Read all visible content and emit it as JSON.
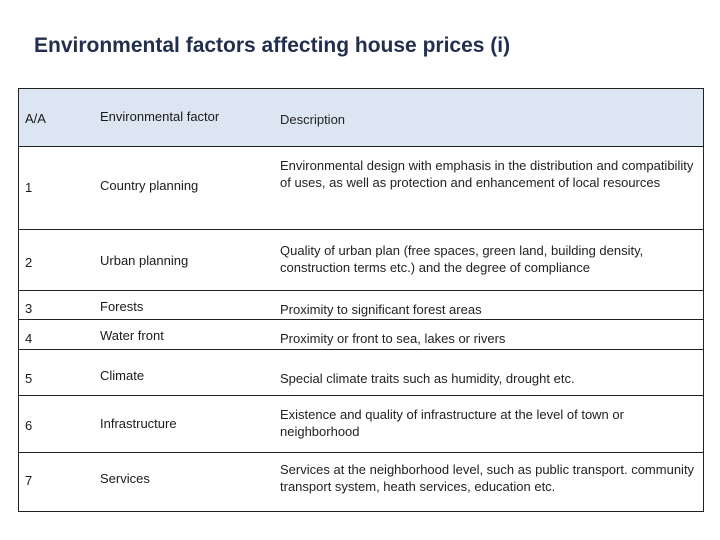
{
  "title": "Environmental factors affecting house prices (i)",
  "table": {
    "headers": [
      "A/A",
      "Environmental factor",
      "Description"
    ],
    "rows": [
      {
        "num": "1",
        "factor": "Country planning",
        "description": "Environmental design with emphasis in the distribution and compatibility of uses, as well as protection and enhancement of local resources"
      },
      {
        "num": "2",
        "factor": "Urban planning",
        "description": "Quality of urban plan (free spaces,  green land, building density, construction terms etc.) and the degree of compliance"
      },
      {
        "num": "3",
        "factor": "Forests",
        "description": "Proximity to significant forest areas"
      },
      {
        "num": "4",
        "factor": "Water front",
        "description": "Proximity or front to sea, lakes or rivers"
      },
      {
        "num": "5",
        "factor": "Climate",
        "description": "Special climate traits such as humidity, drought etc."
      },
      {
        "num": "6",
        "factor": "Infrastructure",
        "description": "Existence and  quality of infrastructure at the level of town or neighborhood"
      },
      {
        "num": "7",
        "factor": "Services",
        "description": "Services at the neighborhood level, such as public transport. community transport system, heath services, education etc."
      }
    ]
  }
}
